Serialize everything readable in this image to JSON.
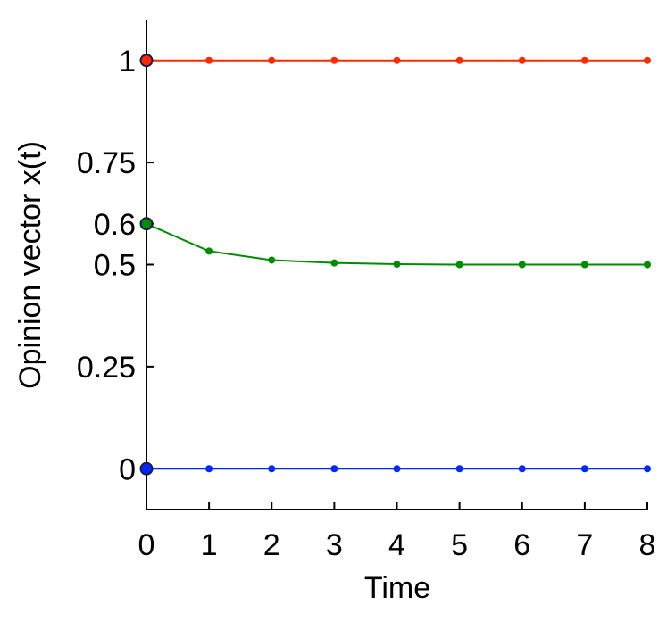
{
  "chart_data": {
    "type": "line",
    "title": "",
    "xlabel": "Time",
    "ylabel": "Opinion vector x(t)",
    "xlim": [
      0,
      8
    ],
    "ylim": [
      -0.1,
      1.1
    ],
    "xticks": [
      "0",
      "1",
      "2",
      "3",
      "4",
      "5",
      "6",
      "7",
      "8"
    ],
    "yticks": [
      {
        "value": 0,
        "label": "0"
      },
      {
        "value": 0.25,
        "label": "0.25"
      },
      {
        "value": 0.5,
        "label": "0.5"
      },
      {
        "value": 0.6,
        "label": "0.6"
      },
      {
        "value": 0.75,
        "label": "0.75"
      },
      {
        "value": 1,
        "label": "1"
      }
    ],
    "grid": false,
    "x": [
      0,
      1,
      2,
      3,
      4,
      5,
      6,
      7,
      8
    ],
    "series": [
      {
        "color": "#ff2a00",
        "values": [
          1,
          1,
          1,
          1,
          1,
          1,
          1,
          1,
          1
        ]
      },
      {
        "color": "#008c00",
        "values": [
          0.6,
          0.533,
          0.511,
          0.504,
          0.501,
          0.5,
          0.5,
          0.5,
          0.5
        ]
      },
      {
        "color": "#0028ff",
        "values": [
          0,
          0,
          0,
          0,
          0,
          0,
          0,
          0,
          0
        ]
      }
    ]
  }
}
